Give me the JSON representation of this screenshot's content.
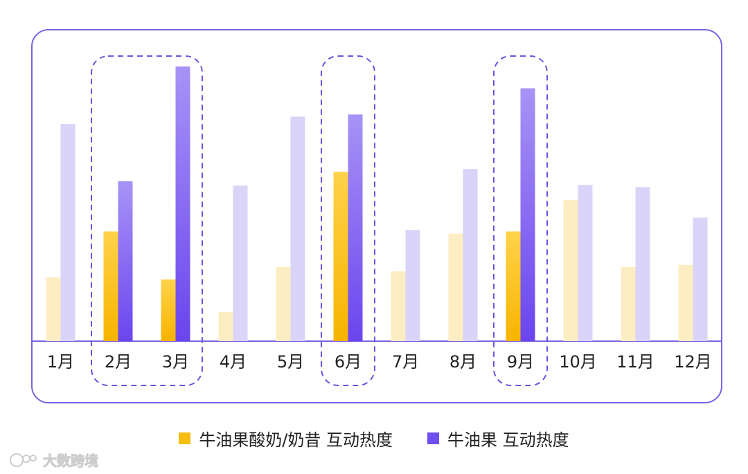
{
  "chart_data": {
    "type": "bar",
    "categories": [
      "1月",
      "2月",
      "3月",
      "4月",
      "5月",
      "6月",
      "7月",
      "8月",
      "9月",
      "10月",
      "11月",
      "12月"
    ],
    "series": [
      {
        "name": "牛油果酸奶/奶昔 互动热度",
        "color": "#f7bd0f",
        "values": [
          88,
          151,
          85,
          40,
          102,
          233,
          96,
          148,
          151,
          194,
          102,
          105
        ]
      },
      {
        "name": "牛油果 互动热度",
        "color": "#6f4ff0",
        "values": [
          299,
          220,
          378,
          214,
          309,
          312,
          153,
          237,
          348,
          215,
          212,
          170
        ]
      }
    ],
    "highlighted_categories": [
      "2月",
      "3月",
      "6月",
      "9月"
    ],
    "ylim": [
      0,
      400
    ],
    "title": "",
    "xlabel": "",
    "ylabel": "",
    "legend_position": "bottom-center"
  },
  "legend": [
    {
      "label": "牛油果酸奶/奶昔 互动热度",
      "color": "#f7bd0f"
    },
    {
      "label": "牛油果 互动热度",
      "color": "#6f4ff0"
    }
  ],
  "watermark": {
    "text": "大数跨境"
  }
}
